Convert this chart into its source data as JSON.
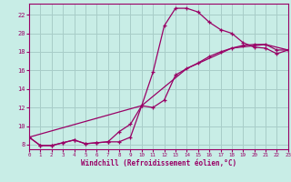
{
  "xlabel": "Windchill (Refroidissement éolien,°C)",
  "background_color": "#c8ede6",
  "grid_color": "#a8ccc8",
  "line_color": "#990066",
  "xlim": [
    0,
    23
  ],
  "ylim": [
    7.5,
    23.2
  ],
  "yticks": [
    8,
    10,
    12,
    14,
    16,
    18,
    20,
    22
  ],
  "xticks": [
    0,
    1,
    2,
    3,
    4,
    5,
    6,
    7,
    8,
    9,
    10,
    11,
    12,
    13,
    14,
    15,
    16,
    17,
    18,
    19,
    20,
    21,
    22,
    23
  ],
  "curve1_x": [
    0,
    1,
    2,
    3,
    4,
    5,
    6,
    7,
    8,
    9,
    10,
    11,
    12,
    13,
    14,
    15,
    16,
    17,
    18,
    19,
    20,
    21,
    22,
    23
  ],
  "curve1_y": [
    8.8,
    7.9,
    7.9,
    8.2,
    8.5,
    8.1,
    8.2,
    8.3,
    8.3,
    8.8,
    12.2,
    15.8,
    20.8,
    22.7,
    22.7,
    22.3,
    21.2,
    20.4,
    20.0,
    19.0,
    18.5,
    18.4,
    17.8,
    18.2
  ],
  "curve2_x": [
    0,
    1,
    2,
    3,
    4,
    5,
    6,
    7,
    8,
    9,
    10,
    11,
    12,
    13,
    14,
    15,
    16,
    17,
    18,
    19,
    20,
    21,
    22,
    23
  ],
  "curve2_y": [
    8.8,
    7.9,
    7.9,
    8.2,
    8.5,
    8.1,
    8.2,
    8.3,
    9.4,
    10.2,
    12.2,
    12.0,
    12.8,
    15.5,
    16.2,
    16.8,
    17.5,
    18.0,
    18.4,
    18.7,
    18.8,
    18.8,
    18.2,
    18.2
  ],
  "curve3_x": [
    0,
    10,
    14,
    18,
    21,
    23
  ],
  "curve3_y": [
    8.8,
    12.2,
    16.2,
    18.4,
    18.8,
    18.2
  ]
}
